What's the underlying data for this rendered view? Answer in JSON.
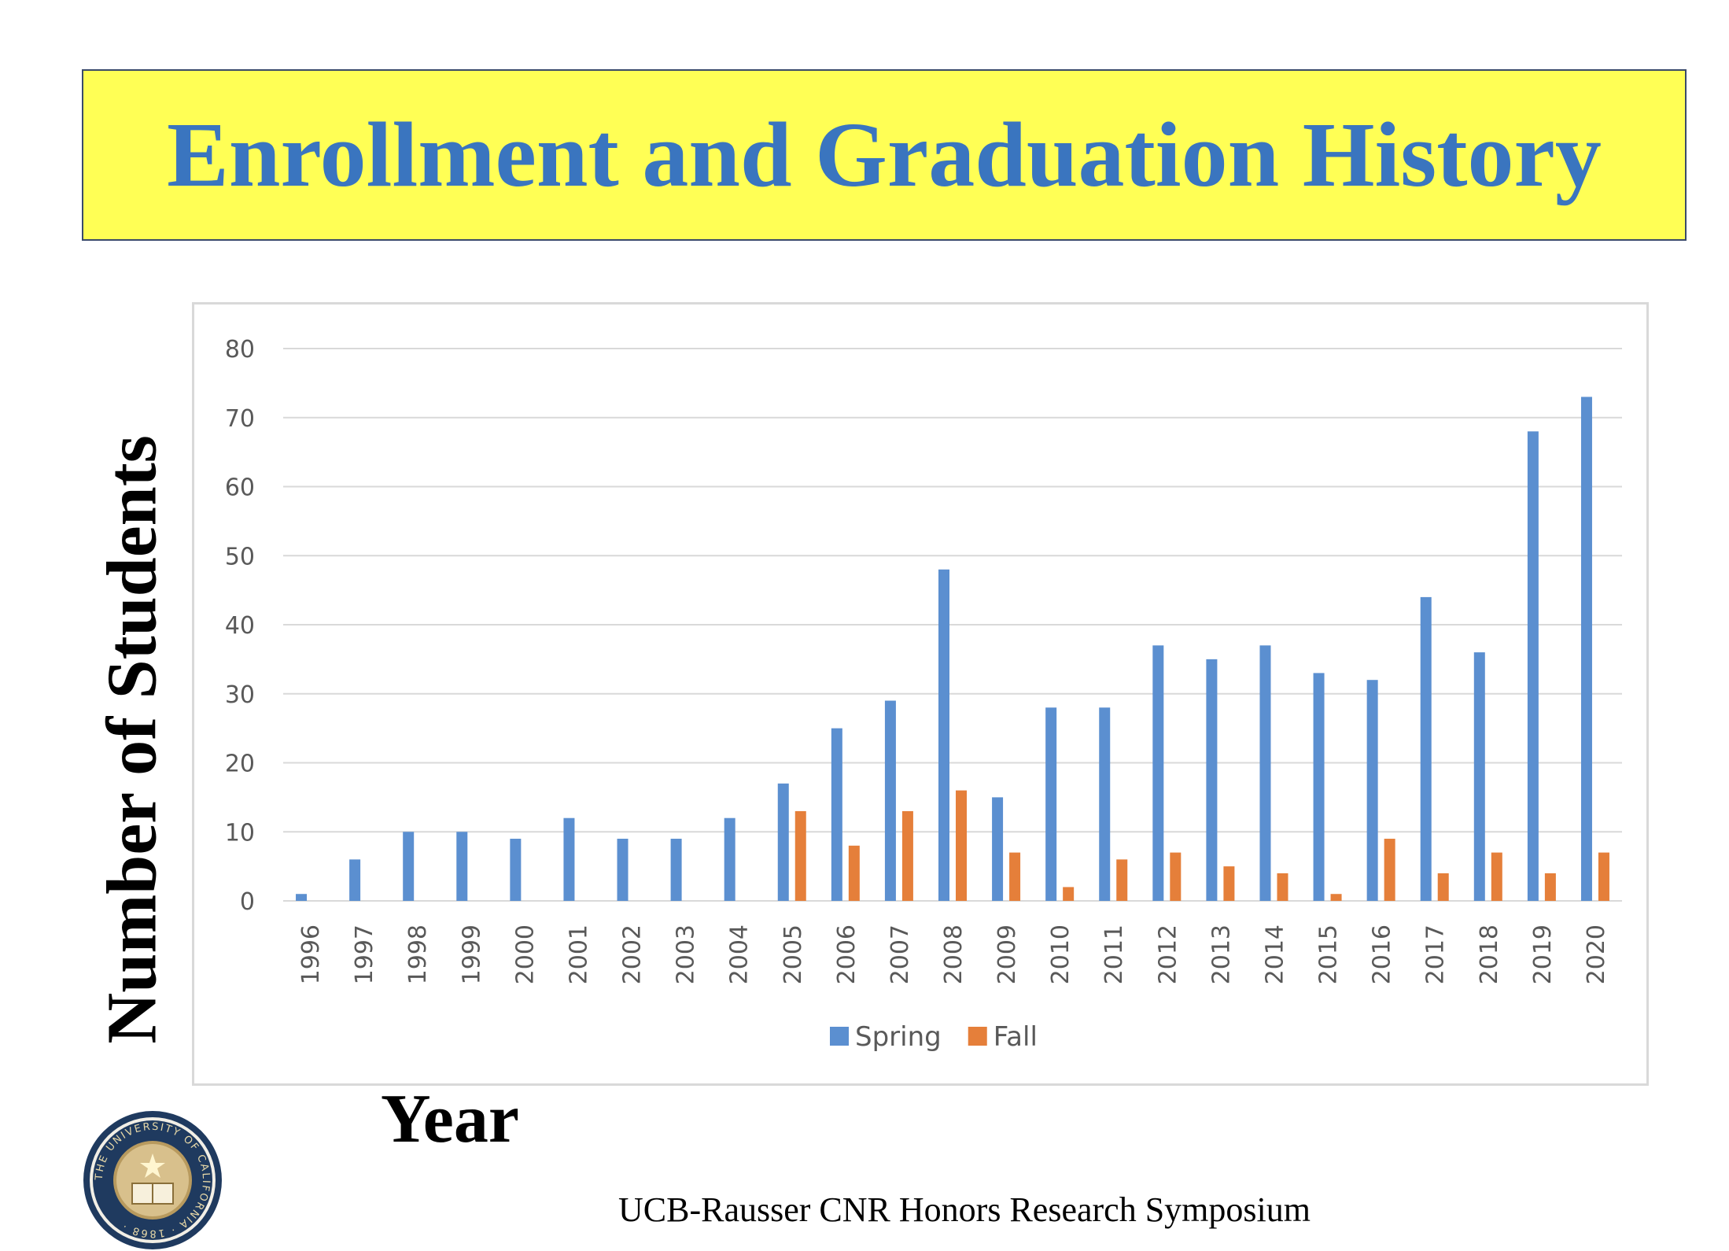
{
  "slide": {
    "title": "Enrollment and Graduation History",
    "footer": "UCB-Rausser CNR Honors Research Symposium",
    "seal_text": "THE UNIVERSITY OF CALIFORNIA · 1868 ·"
  },
  "colors": {
    "title_bg": "#ffff55",
    "title_text": "#3a75bf",
    "spring": "#5b8fd0",
    "fall": "#e57f3a"
  },
  "chart_data": {
    "type": "bar",
    "xlabel": "Year",
    "ylabel": "Number of Students",
    "ylim": [
      0,
      80
    ],
    "yticks": [
      0,
      10,
      20,
      30,
      40,
      50,
      60,
      70,
      80
    ],
    "grid": true,
    "legend_position": "bottom",
    "categories": [
      "1996",
      "1997",
      "1998",
      "1999",
      "2000",
      "2001",
      "2002",
      "2003",
      "2004",
      "2005",
      "2006",
      "2007",
      "2008",
      "2009",
      "2010",
      "2011",
      "2012",
      "2013",
      "2014",
      "2015",
      "2016",
      "2017",
      "2018",
      "2019",
      "2020"
    ],
    "series": [
      {
        "name": "Spring",
        "color": "#5b8fd0",
        "values": [
          1,
          6,
          10,
          10,
          9,
          12,
          9,
          9,
          12,
          17,
          25,
          29,
          48,
          15,
          28,
          28,
          37,
          35,
          37,
          33,
          32,
          44,
          36,
          68,
          73
        ]
      },
      {
        "name": "Fall",
        "color": "#e57f3a",
        "values": [
          0,
          0,
          0,
          0,
          0,
          0,
          0,
          0,
          0,
          13,
          8,
          13,
          16,
          7,
          2,
          6,
          7,
          5,
          4,
          1,
          9,
          4,
          7,
          4,
          7
        ]
      }
    ]
  }
}
